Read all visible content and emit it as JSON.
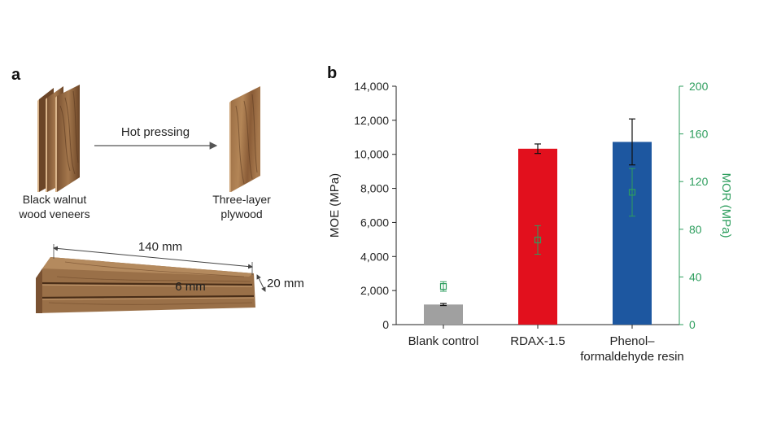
{
  "panel_a": {
    "label": "a",
    "arrow_label": "Hot pressing",
    "veneer_label_line1": "Black walnut",
    "veneer_label_line2": "wood veneers",
    "plywood_label_line1": "Three-layer",
    "plywood_label_line2": "plywood",
    "dim_length": "140 mm",
    "dim_width": "20 mm",
    "dim_thickness": "6 mm",
    "colors": {
      "wood_light": "#a5784d",
      "wood_dark": "#6b4527",
      "wood_edge": "#d9b48a"
    }
  },
  "panel_b": {
    "label": "b"
  },
  "chart_data": {
    "type": "bar",
    "categories": [
      "Blank control",
      "RDAX-1.5",
      "Phenol–formaldehyde resin"
    ],
    "category_lines": [
      [
        "Blank control"
      ],
      [
        "RDAX-1.5"
      ],
      [
        "Phenol–",
        "formaldehyde resin"
      ]
    ],
    "series": [
      {
        "name": "MOE",
        "axis": "left",
        "kind": "bar",
        "values": [
          1180,
          10330,
          10730
        ],
        "errors": [
          60,
          280,
          1350
        ],
        "colors": [
          "#a0a0a0",
          "#e2101d",
          "#1d57a0"
        ]
      },
      {
        "name": "MOR",
        "axis": "right",
        "kind": "point",
        "marker": "open-square",
        "values": [
          32,
          71,
          111
        ],
        "errors": [
          4,
          12,
          20
        ],
        "color": "#2e9e5e"
      }
    ],
    "ylabel": "MOE (MPa)",
    "ylabel_right": "MOR (MPa)",
    "ylim": [
      0,
      14000
    ],
    "yticks": [
      "0",
      "2,000",
      "4,000",
      "6,000",
      "8,000",
      "10,000",
      "12,000",
      "14,000"
    ],
    "ylim_right": [
      0,
      200
    ],
    "yticks_right": [
      "0",
      "40",
      "80",
      "120",
      "160",
      "200"
    ],
    "right_axis_color": "#2e9e5e",
    "grid": false
  }
}
